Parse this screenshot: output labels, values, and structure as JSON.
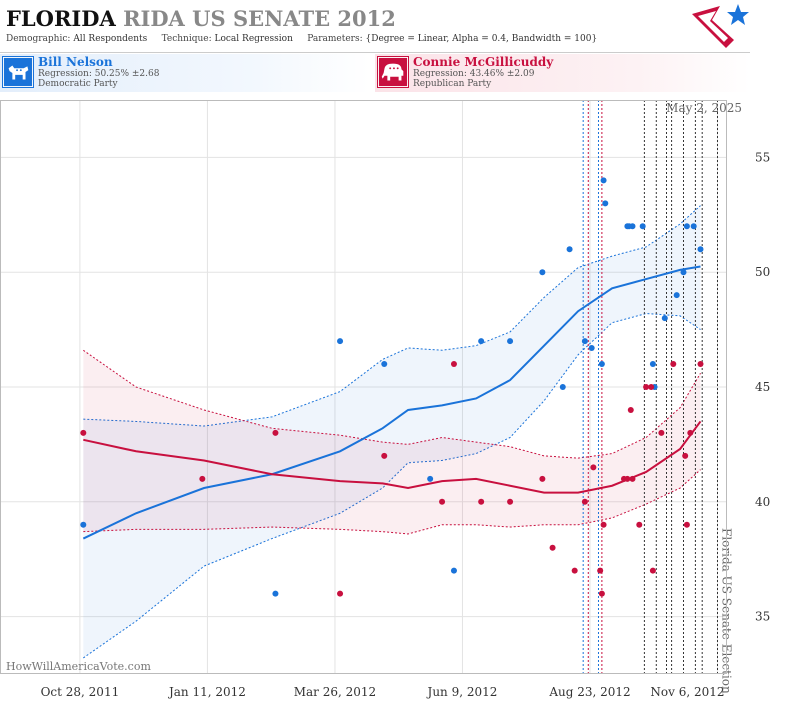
{
  "header": {
    "title_state": "FLORIDA",
    "title_rest": "RIDA US SENATE 2012",
    "demographic_label": "Demographic:",
    "demographic_value": "All Respondents",
    "technique_label": "Technique:",
    "technique_value": "Local Regression",
    "parameters_label": "Parameters:",
    "parameters_value": "{Degree = Linear, Alpha = 0.4, Bandwidth = 100}"
  },
  "candidates": {
    "dem": {
      "name": "Bill Nelson",
      "regression": "Regression: 50.25% ±2.68",
      "party": "Democratic Party",
      "color": "#1a73d9"
    },
    "rep": {
      "name": "Connie McGillicuddy",
      "regression": "Regression: 43.46% ±2.09",
      "party": "Republican Party",
      "color": "#c8103f"
    }
  },
  "chart_data": {
    "type": "scatter",
    "x_start": "2011-09-11",
    "xlim": [
      "2011-09-11",
      "2012-11-11"
    ],
    "ylim": [
      32.5,
      57.5
    ],
    "yticks": [
      35,
      40,
      45,
      50,
      55
    ],
    "xticks": [
      {
        "date": "2011-10-28",
        "label": "Oct 28, 2011"
      },
      {
        "date": "2012-01-11",
        "label": "Jan 11, 2012"
      },
      {
        "date": "2012-03-26",
        "label": "Mar 26, 2012"
      },
      {
        "date": "2012-06-09",
        "label": "Jun 9, 2012"
      },
      {
        "date": "2012-08-23",
        "label": "Aug 23, 2012"
      },
      {
        "date": "2012-11-06",
        "label": "Nov 6, 2012"
      }
    ],
    "grid": true,
    "date_label": "May 2, 2025",
    "election_label": "Florida US Senate Election",
    "watermark": "HowWillAmericaVote.com",
    "vlines": [
      {
        "date": "2012-08-19",
        "color": "#1a73d9"
      },
      {
        "date": "2012-08-22",
        "color": "#c8103f"
      },
      {
        "date": "2012-08-28",
        "color": "#1a73d9"
      },
      {
        "date": "2012-08-30",
        "color": "#c8103f"
      },
      {
        "date": "2012-09-24",
        "color": "#333"
      },
      {
        "date": "2012-10-01",
        "color": "#333"
      },
      {
        "date": "2012-10-07",
        "color": "#333"
      },
      {
        "date": "2012-10-10",
        "color": "#333"
      },
      {
        "date": "2012-10-17",
        "color": "#333"
      },
      {
        "date": "2012-10-24",
        "color": "#333"
      },
      {
        "date": "2012-10-28",
        "color": "#333"
      },
      {
        "date": "2012-11-06",
        "color": "#333"
      }
    ],
    "series": [
      {
        "name": "Bill Nelson",
        "color": "#1a73d9",
        "points": [
          [
            49,
            39
          ],
          [
            162,
            36
          ],
          [
            200,
            47
          ],
          [
            226,
            46
          ],
          [
            253,
            41
          ],
          [
            267,
            37
          ],
          [
            283,
            47
          ],
          [
            300,
            47
          ],
          [
            319,
            50
          ],
          [
            331,
            45
          ],
          [
            335,
            51
          ],
          [
            344,
            47
          ],
          [
            348,
            46.7
          ],
          [
            354,
            46
          ],
          [
            355,
            54
          ],
          [
            356,
            53
          ],
          [
            370,
            52
          ],
          [
            369,
            52
          ],
          [
            372,
            52
          ],
          [
            378,
            52
          ],
          [
            384,
            46
          ],
          [
            385,
            45
          ],
          [
            391,
            48
          ],
          [
            398,
            49
          ],
          [
            402,
            50
          ],
          [
            404,
            52
          ],
          [
            408,
            52
          ],
          [
            412,
            51
          ]
        ],
        "trend": [
          [
            49,
            38.4
          ],
          [
            80,
            39.5
          ],
          [
            120,
            40.6
          ],
          [
            160,
            41.2
          ],
          [
            200,
            42.2
          ],
          [
            225,
            43.2
          ],
          [
            240,
            44
          ],
          [
            260,
            44.2
          ],
          [
            280,
            44.5
          ],
          [
            300,
            45.3
          ],
          [
            320,
            46.8
          ],
          [
            340,
            48.3
          ],
          [
            360,
            49.3
          ],
          [
            380,
            49.7
          ],
          [
            400,
            50.1
          ],
          [
            412,
            50.25
          ]
        ],
        "upper": [
          [
            49,
            43.6
          ],
          [
            80,
            43.5
          ],
          [
            120,
            43.3
          ],
          [
            160,
            43.7
          ],
          [
            200,
            44.8
          ],
          [
            225,
            46.2
          ],
          [
            240,
            46.7
          ],
          [
            260,
            46.6
          ],
          [
            280,
            46.8
          ],
          [
            300,
            47.4
          ],
          [
            320,
            48.9
          ],
          [
            340,
            50.2
          ],
          [
            360,
            50.7
          ],
          [
            380,
            51.1
          ],
          [
            400,
            52.1
          ],
          [
            412,
            52.9
          ]
        ],
        "lower": [
          [
            49,
            33.2
          ],
          [
            80,
            34.8
          ],
          [
            120,
            37.2
          ],
          [
            160,
            38.4
          ],
          [
            200,
            39.5
          ],
          [
            225,
            40.6
          ],
          [
            240,
            41.7
          ],
          [
            260,
            41.8
          ],
          [
            280,
            42.1
          ],
          [
            300,
            42.8
          ],
          [
            320,
            44.4
          ],
          [
            340,
            46.4
          ],
          [
            360,
            47.8
          ],
          [
            380,
            48.2
          ],
          [
            400,
            48.1
          ],
          [
            412,
            47.5
          ]
        ]
      },
      {
        "name": "Connie McGillicuddy",
        "color": "#c8103f",
        "points": [
          [
            49,
            43
          ],
          [
            119,
            41
          ],
          [
            162,
            43
          ],
          [
            200,
            36
          ],
          [
            226,
            42
          ],
          [
            260,
            40
          ],
          [
            267,
            46
          ],
          [
            283,
            40
          ],
          [
            300,
            40
          ],
          [
            319,
            41
          ],
          [
            325,
            38
          ],
          [
            338,
            37
          ],
          [
            344,
            40
          ],
          [
            349,
            41.5
          ],
          [
            353,
            37
          ],
          [
            354,
            36
          ],
          [
            355,
            39
          ],
          [
            367,
            41
          ],
          [
            369,
            41
          ],
          [
            371,
            44
          ],
          [
            372,
            41
          ],
          [
            376,
            39
          ],
          [
            380,
            45
          ],
          [
            383,
            45
          ],
          [
            384,
            37
          ],
          [
            389,
            43
          ],
          [
            396,
            46
          ],
          [
            403,
            42
          ],
          [
            404,
            39
          ],
          [
            406,
            43
          ],
          [
            412,
            46
          ]
        ],
        "trend": [
          [
            49,
            42.7
          ],
          [
            80,
            42.2
          ],
          [
            120,
            41.8
          ],
          [
            160,
            41.2
          ],
          [
            200,
            40.9
          ],
          [
            225,
            40.8
          ],
          [
            240,
            40.6
          ],
          [
            260,
            40.9
          ],
          [
            280,
            41
          ],
          [
            300,
            40.7
          ],
          [
            320,
            40.4
          ],
          [
            340,
            40.4
          ],
          [
            360,
            40.7
          ],
          [
            380,
            41.3
          ],
          [
            400,
            42.3
          ],
          [
            412,
            43.5
          ]
        ],
        "upper": [
          [
            49,
            46.6
          ],
          [
            80,
            45
          ],
          [
            120,
            44
          ],
          [
            160,
            43.2
          ],
          [
            200,
            42.9
          ],
          [
            225,
            42.6
          ],
          [
            240,
            42.5
          ],
          [
            260,
            42.8
          ],
          [
            280,
            42.6
          ],
          [
            300,
            42.4
          ],
          [
            320,
            42
          ],
          [
            340,
            41.9
          ],
          [
            360,
            42.1
          ],
          [
            380,
            42.8
          ],
          [
            400,
            44.1
          ],
          [
            412,
            45.6
          ]
        ],
        "lower": [
          [
            49,
            38.7
          ],
          [
            80,
            38.8
          ],
          [
            120,
            38.8
          ],
          [
            160,
            38.9
          ],
          [
            200,
            38.8
          ],
          [
            225,
            38.7
          ],
          [
            240,
            38.6
          ],
          [
            260,
            39
          ],
          [
            280,
            39
          ],
          [
            300,
            38.9
          ],
          [
            320,
            39
          ],
          [
            340,
            39
          ],
          [
            360,
            39.3
          ],
          [
            380,
            39.9
          ],
          [
            400,
            40.6
          ],
          [
            412,
            41.4
          ]
        ]
      }
    ]
  }
}
